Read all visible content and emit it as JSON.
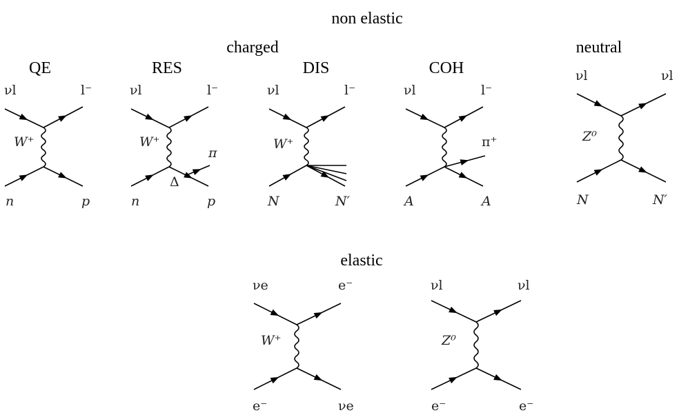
{
  "headings": {
    "non_elastic": "non elastic",
    "charged": "charged",
    "neutral": "neutral",
    "elastic": "elastic"
  },
  "diagrams": {
    "qe": {
      "title": "QE",
      "top_left": "νl",
      "top_right": "l⁻",
      "bottom_left": "n",
      "bottom_right": "p",
      "boson": "W⁺"
    },
    "res": {
      "title": "RES",
      "top_left": "νl",
      "top_right": "l⁻",
      "bottom_left": "n",
      "bottom_right": "p",
      "boson": "W⁺",
      "extra": "π",
      "intermediate": "Δ"
    },
    "dis": {
      "title": "DIS",
      "top_left": "νl",
      "top_right": "l⁻",
      "bottom_left": "N",
      "bottom_right": "N′",
      "boson": "W⁺"
    },
    "coh": {
      "title": "COH",
      "top_left": "νl",
      "top_right": "l⁻",
      "bottom_left": "A",
      "bottom_right": "A",
      "boson": "W⁺",
      "extra": "π⁺"
    },
    "nc": {
      "top_left": "νl",
      "top_right": "νl",
      "bottom_left": "N",
      "bottom_right": "N′",
      "boson": "Z⁰"
    },
    "el_cc": {
      "top_left": "νe",
      "top_right": "e⁻",
      "bottom_left": "e⁻",
      "bottom_right": "νe",
      "boson": "W⁺"
    },
    "el_nc": {
      "top_left": "νl",
      "top_right": "νl",
      "bottom_left": "e⁻",
      "bottom_right": "e⁻",
      "boson": "Z⁰"
    }
  }
}
